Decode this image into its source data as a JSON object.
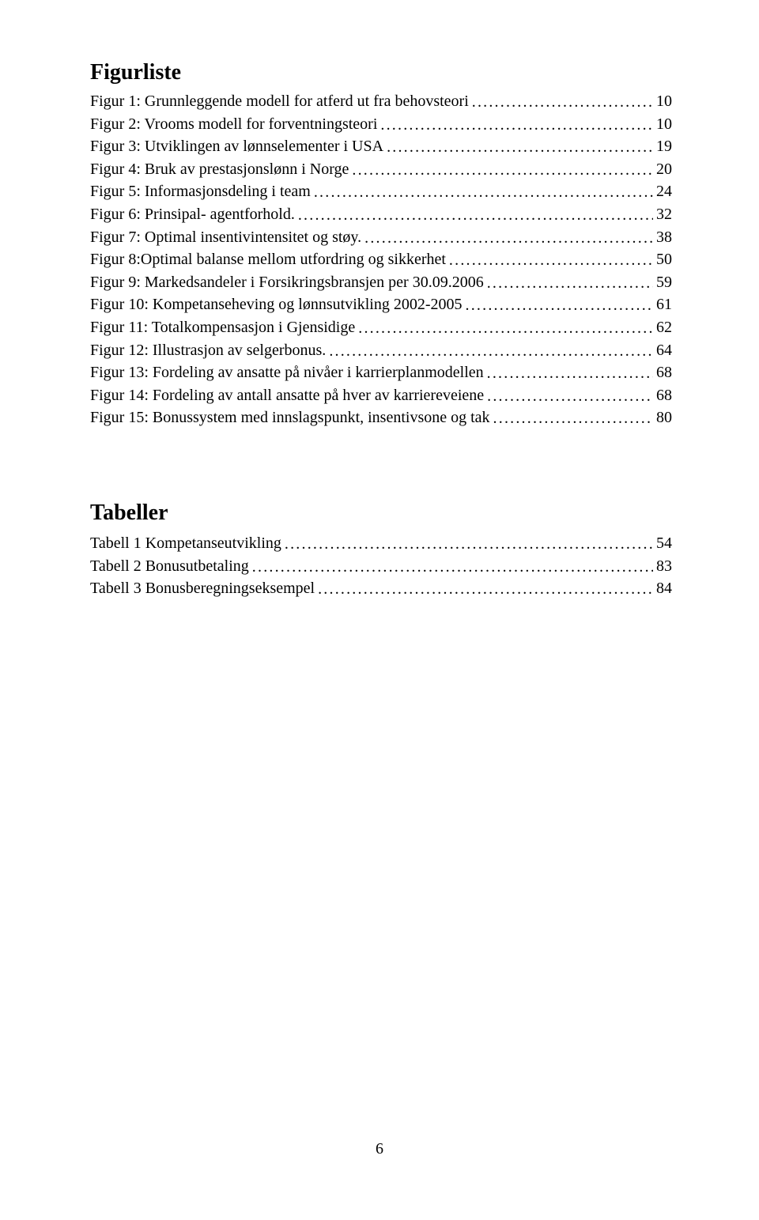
{
  "headings": {
    "figurliste": "Figurliste",
    "tabeller": "Tabeller"
  },
  "figures": [
    {
      "label": "Figur 1: Grunnleggende modell for atferd ut fra behovsteori",
      "page": "10"
    },
    {
      "label": "Figur 2: Vrooms modell for forventningsteori",
      "page": "10"
    },
    {
      "label": "Figur 3: Utviklingen av lønnselementer i USA",
      "page": "19"
    },
    {
      "label": "Figur 4: Bruk av prestasjonslønn i Norge",
      "page": "20"
    },
    {
      "label": "Figur 5: Informasjonsdeling i team",
      "page": "24"
    },
    {
      "label": "Figur 6: Prinsipal- agentforhold.",
      "page": "32"
    },
    {
      "label": "Figur 7: Optimal insentivintensitet og støy.",
      "page": "38"
    },
    {
      "label": "Figur 8:Optimal balanse mellom utfordring og sikkerhet",
      "page": "50"
    },
    {
      "label": "Figur 9: Markedsandeler i Forsikringsbransjen per 30.09.2006",
      "page": "59"
    },
    {
      "label": "Figur 10: Kompetanseheving og lønnsutvikling 2002-2005",
      "page": "61"
    },
    {
      "label": "Figur 11: Totalkompensasjon i Gjensidige",
      "page": "62"
    },
    {
      "label": "Figur 12: Illustrasjon av selgerbonus.",
      "page": "64"
    },
    {
      "label": "Figur 13: Fordeling av ansatte på nivåer i karrierplanmodellen",
      "page": "68"
    },
    {
      "label": "Figur 14: Fordeling av antall ansatte på hver av karriereveiene",
      "page": "68"
    },
    {
      "label": "Figur 15: Bonussystem med innslagspunkt, insentivsone og tak",
      "page": "80"
    }
  ],
  "tables": [
    {
      "label": "Tabell 1 Kompetanseutvikling",
      "page": "54"
    },
    {
      "label": "Tabell 2 Bonusutbetaling",
      "page": "83"
    },
    {
      "label": "Tabell 3 Bonusberegningseksempel",
      "page": "84"
    }
  ],
  "page_number": "6",
  "colors": {
    "background": "#ffffff",
    "text": "#000000"
  },
  "typography": {
    "body_font": "Times New Roman",
    "heading_size_pt": 21,
    "body_size_pt": 15
  }
}
